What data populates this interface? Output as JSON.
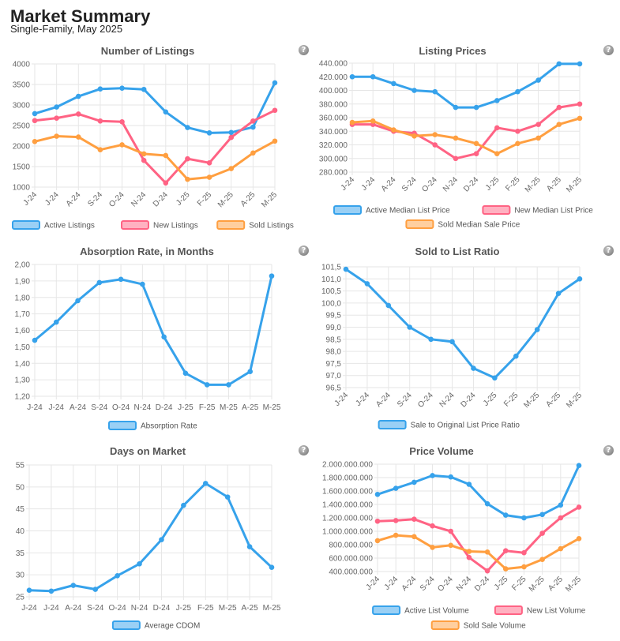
{
  "header": {
    "title": "Market Summary",
    "subtitle": "Single-Family, May 2025"
  },
  "icons": {
    "help": "help-question-icon"
  },
  "colors": {
    "blue": "#36a2eb",
    "pink": "#ff6384",
    "orange": "#ff9f40"
  },
  "chart_data": [
    {
      "type": "line",
      "title": "Number of Listings",
      "categories": [
        "J-24",
        "J-24",
        "A-24",
        "S-24",
        "O-24",
        "N-24",
        "D-24",
        "J-25",
        "F-25",
        "M-25",
        "A-25",
        "M-25"
      ],
      "ylim": [
        1000,
        4000
      ],
      "yticks": [
        "1000",
        "1500",
        "2000",
        "2500",
        "3000",
        "3500",
        "4000"
      ],
      "grid": true,
      "legend": "bottom",
      "series": [
        {
          "name": "Active Listings",
          "color": "#36a2eb",
          "values": [
            2790,
            2950,
            3210,
            3390,
            3410,
            3380,
            2830,
            2450,
            2320,
            2330,
            2460,
            3540
          ]
        },
        {
          "name": "New Listings",
          "color": "#ff6384",
          "values": [
            2620,
            2680,
            2780,
            2610,
            2590,
            1650,
            1100,
            1690,
            1590,
            2210,
            2610,
            2870
          ]
        },
        {
          "name": "Sold Listings",
          "color": "#ff9f40",
          "values": [
            2110,
            2240,
            2220,
            1910,
            2030,
            1810,
            1770,
            1190,
            1240,
            1450,
            1830,
            2120
          ]
        }
      ]
    },
    {
      "type": "line",
      "title": "Listing Prices",
      "categories": [
        "J-24",
        "J-24",
        "A-24",
        "S-24",
        "O-24",
        "N-24",
        "D-24",
        "J-25",
        "F-25",
        "M-25",
        "A-25",
        "M-25"
      ],
      "ylim": [
        280000,
        440000
      ],
      "yticks": [
        "280.000",
        "300.000",
        "320.000",
        "340.000",
        "360.000",
        "380.000",
        "400.000",
        "420.000",
        "440.000"
      ],
      "grid": true,
      "legend": "bottom",
      "series": [
        {
          "name": "Active Median List Price",
          "color": "#36a2eb",
          "values": [
            420000,
            420000,
            410000,
            400000,
            398000,
            375000,
            375000,
            385000,
            398000,
            415000,
            439000,
            439000
          ]
        },
        {
          "name": "New Median List Price",
          "color": "#ff6384",
          "values": [
            350000,
            350000,
            340000,
            337000,
            320000,
            300000,
            307000,
            345000,
            340000,
            350000,
            375000,
            380000
          ]
        },
        {
          "name": "Sold Median Sale Price",
          "color": "#ff9f40",
          "values": [
            353000,
            355000,
            342000,
            333000,
            335000,
            330000,
            322000,
            307000,
            322000,
            330000,
            350000,
            359000
          ]
        }
      ]
    },
    {
      "type": "line",
      "title": "Absorption Rate, in Months",
      "categories": [
        "J-24",
        "J-24",
        "A-24",
        "S-24",
        "O-24",
        "N-24",
        "D-24",
        "J-25",
        "F-25",
        "M-25",
        "A-25",
        "M-25"
      ],
      "ylim": [
        1.2,
        2.0
      ],
      "yticks": [
        "1,20",
        "1,30",
        "1,40",
        "1,50",
        "1,60",
        "1,70",
        "1,80",
        "1,90",
        "2,00"
      ],
      "grid": true,
      "legend": "bottom",
      "series": [
        {
          "name": "Absorption Rate",
          "color": "#36a2eb",
          "values": [
            1.54,
            1.65,
            1.78,
            1.89,
            1.91,
            1.88,
            1.56,
            1.34,
            1.27,
            1.27,
            1.35,
            1.93
          ]
        }
      ]
    },
    {
      "type": "line",
      "title": "Sold to List Ratio",
      "categories": [
        "J-24",
        "J-24",
        "A-24",
        "S-24",
        "O-24",
        "N-24",
        "D-24",
        "J-25",
        "F-25",
        "M-25",
        "A-25",
        "M-25"
      ],
      "ylim": [
        96.5,
        101.5
      ],
      "yticks": [
        "96,5",
        "97,0",
        "97,5",
        "98,0",
        "98,5",
        "99,0",
        "99,5",
        "100,0",
        "100,5",
        "101,0",
        "101,5"
      ],
      "grid": true,
      "legend": "bottom",
      "series": [
        {
          "name": "Sale to Original List Price Ratio",
          "color": "#36a2eb",
          "values": [
            101.4,
            100.8,
            99.9,
            99.0,
            98.5,
            98.4,
            97.3,
            96.9,
            97.8,
            98.9,
            100.4,
            101.0
          ]
        }
      ]
    },
    {
      "type": "line",
      "title": "Days on Market",
      "categories": [
        "J-24",
        "J-24",
        "A-24",
        "S-24",
        "O-24",
        "N-24",
        "D-24",
        "J-25",
        "F-25",
        "M-25",
        "A-25",
        "M-25"
      ],
      "ylim": [
        25,
        55
      ],
      "yticks": [
        "25",
        "30",
        "35",
        "40",
        "45",
        "50",
        "55"
      ],
      "grid": true,
      "legend": "bottom",
      "series": [
        {
          "name": "Average CDOM",
          "color": "#36a2eb",
          "values": [
            26.5,
            26.3,
            27.6,
            26.7,
            29.8,
            32.5,
            38,
            45.8,
            50.8,
            47.7,
            36.4,
            31.7
          ]
        }
      ]
    },
    {
      "type": "line",
      "title": "Price Volume",
      "categories": [
        "J-24",
        "J-24",
        "A-24",
        "S-24",
        "O-24",
        "N-24",
        "D-24",
        "J-25",
        "F-25",
        "M-25",
        "A-25",
        "M-25"
      ],
      "ylim": [
        400000000,
        2000000000
      ],
      "yticks": [
        "400.000.000",
        "600.000.000",
        "800.000.000",
        "1.000.000.000",
        "1.200.000.000",
        "1.400.000.000",
        "1.600.000.000",
        "1.800.000.000",
        "2.000.000.000"
      ],
      "grid": true,
      "legend": "bottom",
      "series": [
        {
          "name": "Active List Volume",
          "color": "#36a2eb",
          "values": [
            1550000000,
            1640000000,
            1730000000,
            1830000000,
            1810000000,
            1700000000,
            1410000000,
            1240000000,
            1200000000,
            1250000000,
            1390000000,
            1980000000
          ]
        },
        {
          "name": "New List Volume",
          "color": "#ff6384",
          "values": [
            1150000000,
            1160000000,
            1180000000,
            1080000000,
            1000000000,
            610000000,
            410000000,
            710000000,
            680000000,
            970000000,
            1200000000,
            1360000000
          ]
        },
        {
          "name": "Sold Sale Volume",
          "color": "#ff9f40",
          "values": [
            860000000,
            940000000,
            920000000,
            760000000,
            790000000,
            700000000,
            690000000,
            440000000,
            470000000,
            580000000,
            740000000,
            890000000
          ]
        }
      ]
    }
  ]
}
